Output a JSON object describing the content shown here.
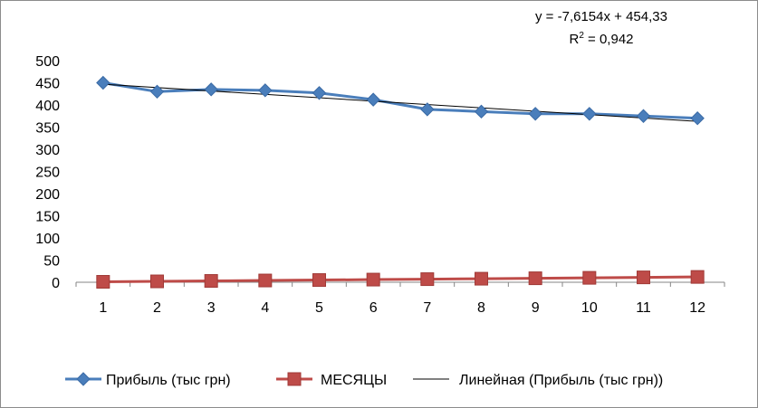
{
  "chart_data": {
    "type": "line",
    "x": [
      1,
      2,
      3,
      4,
      5,
      6,
      7,
      8,
      9,
      10,
      11,
      12
    ],
    "ylim": [
      0,
      500
    ],
    "yticks": [
      0,
      50,
      100,
      150,
      200,
      250,
      300,
      350,
      400,
      450,
      500
    ],
    "grid": false,
    "legend_position": "bottom",
    "series": [
      {
        "name": "Прибыль (тыс грн)",
        "values": [
          450,
          430,
          435,
          433,
          427,
          412,
          390,
          385,
          380,
          380,
          375,
          370
        ],
        "color": "#4a7ebb",
        "marker": "diamond"
      },
      {
        "name": "МЕСЯЦЫ",
        "values": [
          1,
          2,
          3,
          4,
          5,
          6,
          7,
          8,
          9,
          10,
          11,
          12
        ],
        "color": "#be4b48",
        "marker": "square"
      }
    ],
    "trendline": {
      "name": "Линейная (Прибыль (тыс грн))",
      "slope": -7.6154,
      "intercept": 454.33,
      "color": "#000000"
    },
    "equation_text": "y = -7,6154x + 454,33",
    "r2_label": "R",
    "r2_sup": "2",
    "r2_value": " = 0,942"
  }
}
